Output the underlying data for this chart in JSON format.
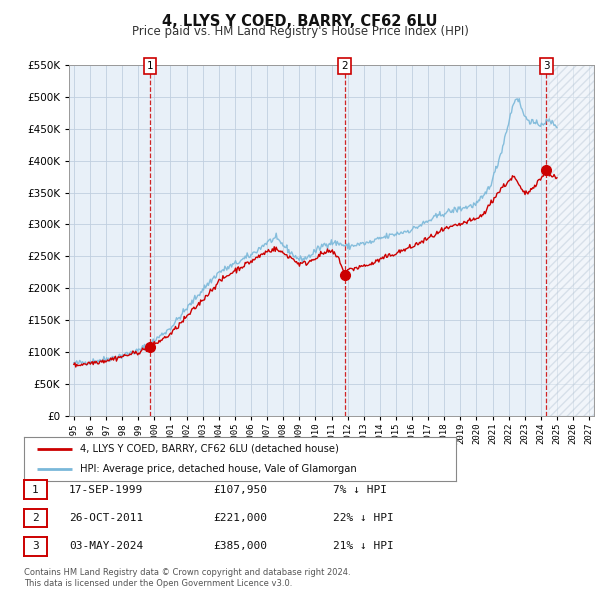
{
  "title": "4, LLYS Y COED, BARRY, CF62 6LU",
  "subtitle": "Price paid vs. HM Land Registry's House Price Index (HPI)",
  "hpi_color": "#7ab8d9",
  "price_color": "#cc0000",
  "background_color": "#ffffff",
  "plot_bg_color": "#e8f0f8",
  "grid_color": "#c0cfe0",
  "ylim": [
    0,
    550000
  ],
  "yticks": [
    0,
    50000,
    100000,
    150000,
    200000,
    250000,
    300000,
    350000,
    400000,
    450000,
    500000,
    550000
  ],
  "xlim_start": 1994.7,
  "xlim_end": 2027.3,
  "xticks": [
    1995,
    1996,
    1997,
    1998,
    1999,
    2000,
    2001,
    2002,
    2003,
    2004,
    2005,
    2006,
    2007,
    2008,
    2009,
    2010,
    2011,
    2012,
    2013,
    2014,
    2015,
    2016,
    2017,
    2018,
    2019,
    2020,
    2021,
    2022,
    2023,
    2024,
    2025,
    2026,
    2027
  ],
  "sale_dates": [
    1999.72,
    2011.82,
    2024.34
  ],
  "sale_prices": [
    107950,
    221000,
    385000
  ],
  "sale_labels": [
    "1",
    "2",
    "3"
  ],
  "vline_color": "#cc0000",
  "sale_marker_color": "#cc0000",
  "legend_entries": [
    "4, LLYS Y COED, BARRY, CF62 6LU (detached house)",
    "HPI: Average price, detached house, Vale of Glamorgan"
  ],
  "table_rows": [
    [
      "1",
      "17-SEP-1999",
      "£107,950",
      "7% ↓ HPI"
    ],
    [
      "2",
      "26-OCT-2011",
      "£221,000",
      "22% ↓ HPI"
    ],
    [
      "3",
      "03-MAY-2024",
      "£385,000",
      "21% ↓ HPI"
    ]
  ],
  "footnote": "Contains HM Land Registry data © Crown copyright and database right 2024.\nThis data is licensed under the Open Government Licence v3.0."
}
